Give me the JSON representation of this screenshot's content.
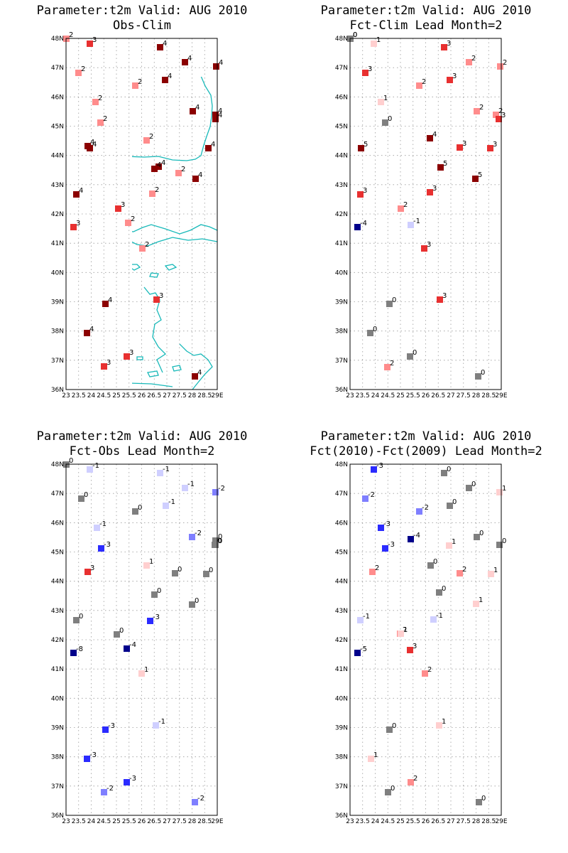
{
  "colors": {
    "coast": "#18b9b9",
    "grid": "#9a9a9a",
    "zero": "#7f7f7f",
    "pos": [
      "#ffcfcf",
      "#ff8c8c",
      "#e83030",
      "#8b0000"
    ],
    "neg": [
      "#cfcfff",
      "#7f7fff",
      "#2b2bff",
      "#00008b"
    ]
  },
  "axes": {
    "lat_labels": [
      "48N",
      "47N",
      "46N",
      "45N",
      "44N",
      "43N",
      "42N",
      "41N",
      "40N",
      "39N",
      "38N",
      "37N",
      "36N"
    ],
    "lon_labels": [
      "23",
      "23.5",
      "24",
      "24.5",
      "25",
      "25.5",
      "26",
      "26.5",
      "27",
      "27.5",
      "28",
      "28.5",
      "29E"
    ],
    "lat_range": [
      36,
      48
    ],
    "lon_range": [
      23,
      29
    ]
  },
  "panels": [
    {
      "title1": "Parameter:t2m Valid: AUG 2010",
      "title2": "Obs-Clim",
      "values": [
        "3",
        "4",
        "4",
        "4",
        "2",
        "2",
        "4",
        "2",
        "2",
        "4",
        "4",
        "4",
        "4",
        "2",
        "4",
        "2",
        "4",
        "4",
        "4",
        "4",
        "2",
        "4",
        "3",
        "2",
        "3",
        "2",
        "4",
        "3",
        "4",
        "3",
        "3",
        "4",
        "2"
      ]
    },
    {
      "title1": "Parameter:t2m Valid: AUG 2010",
      "title2": "Fct-Clim Lead Month=2",
      "values": [
        "1",
        "3",
        "2",
        "2",
        "3",
        "3",
        "2",
        "1",
        "2",
        "0",
        "2",
        "3",
        "3",
        "5",
        "4",
        "5",
        "3",
        "5",
        "3",
        "3",
        "0",
        "2",
        "-4",
        "-1",
        "3",
        "3",
        "0",
        "0",
        "0",
        "2",
        "0",
        "0"
      ]
    },
    {
      "title1": "Parameter:t2m Valid: AUG 2010",
      "title2": "Fct-Obs Lead Month=2",
      "values": [
        "-1",
        "-1",
        "-1",
        "-2",
        "0",
        "0",
        "-1",
        "-1",
        "-2",
        "0",
        "-3",
        "0",
        "1",
        "0",
        "0",
        "3",
        "0",
        "0",
        "-3",
        "0",
        "-8",
        "-4",
        "1",
        "0",
        "-1",
        "-3",
        "-3",
        "-3",
        "-2",
        "-2",
        "0",
        "0"
      ]
    },
    {
      "title1": "Parameter:t2m Valid: AUG 2010",
      "title2": "Fct(2010)-Fct(2009) Lead Month=2",
      "values": [
        "-3",
        "0",
        "0",
        "1",
        "-2",
        "-2",
        "0",
        "-3",
        "-4",
        "0",
        "-3",
        "1",
        "0",
        "2",
        "0",
        "2",
        "1",
        "1",
        "-1",
        "2",
        "-1",
        "1",
        "-5",
        "3",
        "2",
        "1",
        "0",
        "1",
        "2",
        "0",
        "0",
        "0"
      ]
    }
  ]
}
